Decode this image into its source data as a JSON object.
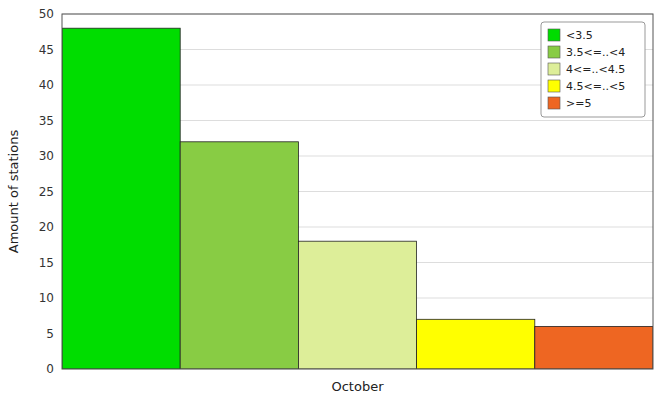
{
  "chart_data": {
    "type": "bar",
    "categories": [
      "<3.5",
      "3.5<=..<4",
      "4<=..<4.5",
      "4.5<=..<5",
      ">=5"
    ],
    "values": [
      48,
      32,
      18,
      7,
      6
    ],
    "colors": [
      "#00dd00",
      "#88cc44",
      "#ddee99",
      "#ffff00",
      "#ee6622"
    ],
    "xlabel": "October",
    "ylabel": "Amount of stations",
    "ylim": [
      0,
      50
    ],
    "yticks": [
      0,
      5,
      10,
      15,
      20,
      25,
      30,
      35,
      40,
      45,
      50
    ],
    "grid": true,
    "legend": "upper right"
  }
}
